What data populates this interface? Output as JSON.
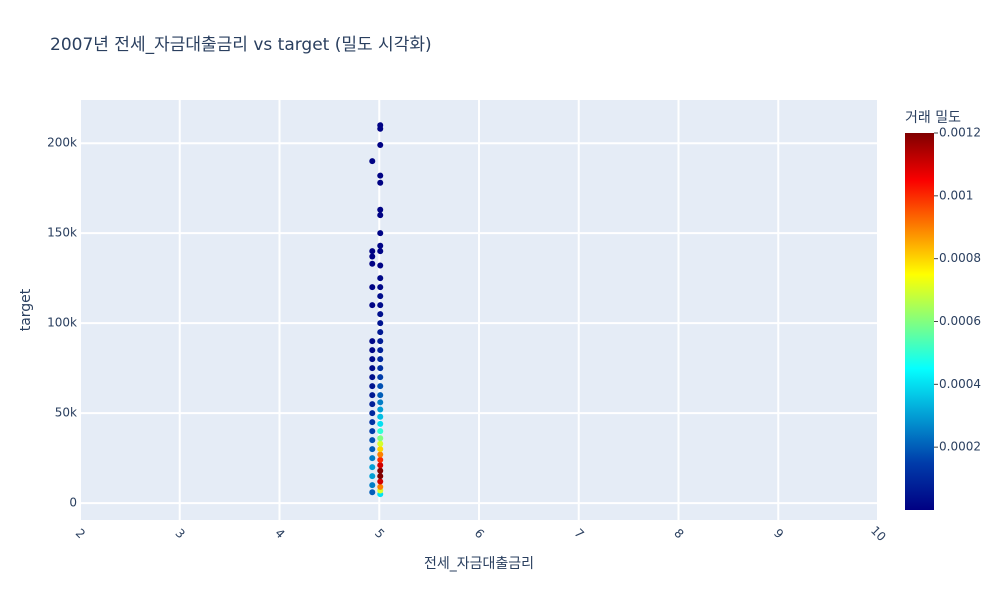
{
  "chart_data": {
    "type": "scatter",
    "title": "2007년 전세_자금대출금리 vs target (밀도 시각화)",
    "x_label": "전세_자금대출금리",
    "y_label": "target",
    "x": [
      5.01,
      5.01,
      5.01,
      5.01,
      5.01,
      5.01,
      5.01,
      5.01,
      5.01,
      5.01,
      5.01,
      5.01,
      5.01,
      5.01,
      5.01,
      5.01,
      5.01,
      5.01,
      5.01,
      5.01,
      5.01,
      5.01,
      5.01,
      5.01,
      5.01,
      5.01,
      5.01,
      5.01,
      5.01,
      5.01,
      5.01,
      5.01,
      5.01,
      5.01,
      5.01,
      5.01,
      5.01,
      5.01,
      5.01,
      5.01,
      5.01,
      5.01,
      4.93,
      4.93,
      4.93,
      4.93,
      4.93,
      4.93,
      4.93,
      4.93,
      4.93,
      4.93,
      4.93,
      4.93,
      4.93,
      4.93,
      4.93,
      4.93,
      4.93,
      4.93,
      4.93,
      4.93,
      4.93,
      4.93,
      4.93,
      4.93
    ],
    "values": [
      5000,
      7000,
      9000,
      12000,
      15000,
      18000,
      21000,
      24000,
      27000,
      30000,
      33000,
      36000,
      40000,
      44000,
      48000,
      52000,
      56000,
      60000,
      65000,
      70000,
      75000,
      80000,
      85000,
      90000,
      95000,
      100000,
      105000,
      110000,
      115000,
      120000,
      125000,
      132000,
      140000,
      143000,
      150000,
      160000,
      163000,
      178000,
      182000,
      199000,
      208000,
      210000,
      6000,
      10000,
      15000,
      20000,
      25000,
      30000,
      35000,
      40000,
      45000,
      50000,
      55000,
      60000,
      65000,
      70000,
      75000,
      80000,
      85000,
      90000,
      110000,
      120000,
      133000,
      137000,
      140000,
      190000
    ],
    "density": [
      0.0004,
      0.0007,
      0.0009,
      0.0011,
      0.0012,
      0.0012,
      0.0011,
      0.001,
      0.0009,
      0.0008,
      0.0007,
      0.0006,
      0.0005,
      0.0004,
      0.00035,
      0.0003,
      0.00025,
      0.0002,
      0.00018,
      0.00015,
      0.00012,
      0.0001,
      8e-05,
      7e-05,
      6e-05,
      5e-05,
      4e-05,
      3e-05,
      3e-05,
      2e-05,
      2e-05,
      1e-05,
      1e-05,
      1e-05,
      1e-05,
      5e-06,
      5e-06,
      5e-06,
      5e-06,
      5e-06,
      5e-06,
      5e-06,
      0.0002,
      0.00025,
      0.0003,
      0.0003,
      0.00025,
      0.0002,
      0.00018,
      0.00015,
      0.00012,
      0.0001,
      8e-05,
      6e-05,
      5e-05,
      4e-05,
      3e-05,
      3e-05,
      2e-05,
      2e-05,
      1e-05,
      1e-05,
      5e-06,
      5e-06,
      5e-06,
      5e-06
    ],
    "xlim": [
      2,
      10
    ],
    "xticks": [
      2,
      3,
      4,
      5,
      6,
      7,
      8,
      9,
      10
    ],
    "ylim": [
      -9400,
      224000
    ],
    "yticks": [
      0,
      {
        "value": 50000,
        "label": "50k"
      },
      {
        "value": 100000,
        "label": "100k"
      },
      {
        "value": 150000,
        "label": "150k"
      },
      {
        "value": 200000,
        "label": "200k"
      }
    ],
    "grid": true,
    "colorscale": {
      "stops": [
        0,
        0.125,
        0.375,
        0.625,
        0.875,
        1
      ],
      "colors": [
        "#000083",
        "#003caa",
        "#05ffff",
        "#ffff00",
        "#fa0000",
        "#800000"
      ]
    },
    "colorbar": {
      "title": "거래 밀도",
      "lim": [
        0,
        0.0012
      ],
      "ticks": [
        0.0002,
        0.0004,
        0.0006,
        0.0008,
        0.001,
        0.0012
      ]
    }
  }
}
